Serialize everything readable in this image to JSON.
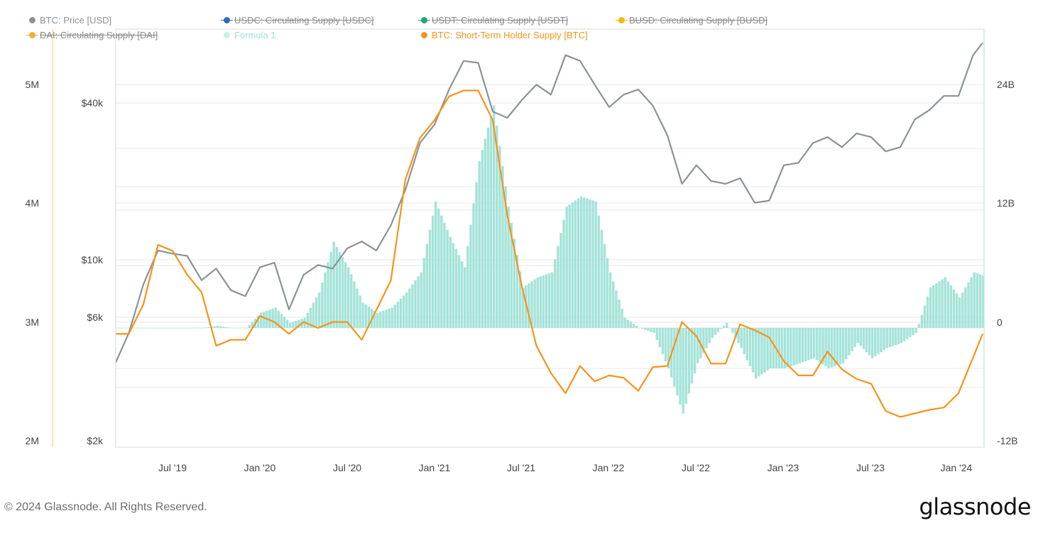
{
  "footer": {
    "copyright": "© 2024 Glassnode. All Rights Reserved.",
    "logo": "glassnode"
  },
  "chart_data": {
    "type": "line",
    "title": "",
    "legend_placement": "top",
    "legend": [
      {
        "label": "BTC: Price [USD]",
        "color": "#8a9396",
        "visible": true
      },
      {
        "label": "USDC: Circulating Supply [USDC]",
        "color": "#2f6db5",
        "visible": false
      },
      {
        "label": "USDT: Circulating Supply [USDT]",
        "color": "#26a17b",
        "visible": false
      },
      {
        "label": "BUSD: Circulating Supply [BUSD]",
        "color": "#f0b90b",
        "visible": false
      },
      {
        "label": "DAI: Circulating Supply [DAI]",
        "color": "#f5ac37",
        "visible": false
      },
      {
        "label": "Formula 1",
        "color": "#9fe2d6",
        "visible": true
      },
      {
        "label": "BTC: Short-Term Holder Supply [BTC]",
        "color": "#f7931a",
        "visible": true
      }
    ],
    "x": [
      "2019-03",
      "2019-04",
      "2019-05",
      "2019-06",
      "2019-07",
      "2019-08",
      "2019-09",
      "2019-10",
      "2019-11",
      "2019-12",
      "2020-01",
      "2020-02",
      "2020-03",
      "2020-04",
      "2020-05",
      "2020-06",
      "2020-07",
      "2020-08",
      "2020-09",
      "2020-10",
      "2020-11",
      "2020-12",
      "2021-01",
      "2021-02",
      "2021-03",
      "2021-04",
      "2021-05",
      "2021-06",
      "2021-07",
      "2021-08",
      "2021-09",
      "2021-10",
      "2021-11",
      "2021-12",
      "2022-01",
      "2022-02",
      "2022-03",
      "2022-04",
      "2022-05",
      "2022-06",
      "2022-07",
      "2022-08",
      "2022-09",
      "2022-10",
      "2022-11",
      "2022-12",
      "2023-01",
      "2023-02",
      "2023-03",
      "2023-04",
      "2023-05",
      "2023-06",
      "2023-07",
      "2023-08",
      "2023-09",
      "2023-10",
      "2023-11",
      "2023-12",
      "2024-01",
      "2024-02",
      "2024-03"
    ],
    "x_ticks": [
      "Jul '19",
      "Jan '20",
      "Jul '20",
      "Jan '21",
      "Jul '21",
      "Jan '22",
      "Jul '22",
      "Jan '23",
      "Jul '23",
      "Jan '24"
    ],
    "axes": {
      "left_outer": {
        "label": "DAI: Circulating Supply",
        "ticks": [
          "5M",
          "4M",
          "3M",
          "2M"
        ],
        "range": [
          2000000,
          5000000
        ]
      },
      "left_price": {
        "label": "BTC: Price [USD]",
        "scale": "log",
        "ticks": [
          "$40k",
          "$10k",
          "$6k",
          "$2k"
        ],
        "range": [
          2000,
          70000
        ]
      },
      "right": {
        "label": "Formula 1",
        "ticks": [
          "24B",
          "12B",
          "0",
          "-12B"
        ],
        "range": [
          -12000000000,
          24000000000
        ]
      }
    },
    "series": [
      {
        "name": "BTC: Price [USD]",
        "axis": "left_price",
        "values": [
          4000,
          5200,
          8000,
          10800,
          10500,
          10300,
          8300,
          9200,
          7600,
          7200,
          9300,
          9700,
          6400,
          8700,
          9500,
          9200,
          11000,
          11700,
          10800,
          13500,
          18500,
          28000,
          33000,
          45000,
          58000,
          57000,
          37000,
          35000,
          41000,
          47000,
          43000,
          61000,
          58000,
          47000,
          38500,
          43000,
          45000,
          39000,
          30000,
          19500,
          23000,
          20000,
          19500,
          20500,
          16500,
          16800,
          23000,
          23500,
          28000,
          29500,
          27000,
          30500,
          29500,
          26000,
          27000,
          34500,
          37500,
          42500,
          42500,
          61000,
          68000
        ]
      },
      {
        "name": "BTC: Short-Term Holder Supply [BTC]",
        "axis": "left_outer",
        "values": [
          2900000,
          2900000,
          3150000,
          3650000,
          3600000,
          3400000,
          3250000,
          2800000,
          2850000,
          2850000,
          3050000,
          3000000,
          2900000,
          3000000,
          2950000,
          3000000,
          3000000,
          2850000,
          3100000,
          3350000,
          4200000,
          4550000,
          4700000,
          4900000,
          4950000,
          4950000,
          4700000,
          3900000,
          3300000,
          2800000,
          2570000,
          2400000,
          2630000,
          2500000,
          2550000,
          2530000,
          2420000,
          2620000,
          2630000,
          3000000,
          2880000,
          2650000,
          2650000,
          2980000,
          2930000,
          2870000,
          2670000,
          2550000,
          2550000,
          2750000,
          2600000,
          2520000,
          2480000,
          2250000,
          2200000,
          2230000,
          2260000,
          2280000,
          2400000,
          2700000,
          2900000
        ]
      },
      {
        "name": "Formula 1",
        "axis": "right",
        "type": "area",
        "values": [
          0,
          0,
          0,
          0,
          0,
          0,
          0,
          200000000,
          0,
          0,
          1500000000,
          2000000000,
          500000000,
          1000000000,
          3500000000,
          8500000000,
          6000000000,
          2500000000,
          1500000000,
          2000000000,
          3500000000,
          5500000000,
          12500000000,
          9000000000,
          6000000000,
          16500000000,
          22000000000,
          12000000000,
          4000000000,
          5000000000,
          5500000000,
          12000000000,
          13000000000,
          12500000000,
          5500000000,
          1000000000,
          0,
          -500000000,
          -4000000000,
          -8500000000,
          -3500000000,
          -1000000000,
          500000000,
          -2000000000,
          -5000000000,
          -4000000000,
          -4000000000,
          -3500000000,
          -3000000000,
          -4000000000,
          -3500000000,
          -1500000000,
          -3000000000,
          -2000000000,
          -1500000000,
          -500000000,
          4000000000,
          5000000000,
          3000000000,
          5500000000,
          5000000000
        ]
      }
    ]
  }
}
